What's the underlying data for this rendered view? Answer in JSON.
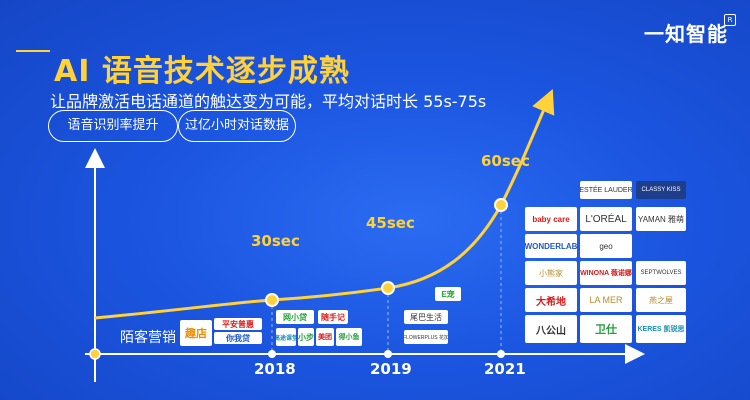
{
  "brand": {
    "name": "一知智能",
    "mark": "R"
  },
  "title": "AI 语音技术逐步成熟",
  "subtitle": "让品牌激活电话通道的触达变为可能，平均对话时长 55s-75s",
  "tags": [
    "语音识别率提升",
    "过亿小时对话数据"
  ],
  "timeline": {
    "baseline_label": "陌客营销",
    "years": [
      "2018",
      "2019",
      "2021"
    ],
    "durations": [
      "30sec",
      "45sec",
      "60sec"
    ]
  },
  "logos": {
    "baseline": [
      "趣店",
      "平安普惠",
      "你我贷"
    ],
    "y2018": [
      "网小贷",
      "随手记",
      "高途课堂",
      "小步",
      "美团",
      "得小鱼"
    ],
    "y2019": [
      "E宠",
      "尾巴生活",
      "FLOWERPLUS 花加"
    ],
    "y2021": [
      "ESTÉE LAUDER",
      "CLASSY KISS",
      "baby care",
      "L'ORÉAL",
      "YAMAN 雅萌",
      "WONDERLAB",
      "geo",
      "小熊家",
      "WINONA 薇诺娜",
      "SEPTWOLVES",
      "大希地",
      "LA MER",
      "燕之屋",
      "八公山",
      "卫仕",
      "KERES 凯锐思"
    ]
  },
  "colors": {
    "background": "#1b55e0",
    "accent": "#ffd13a",
    "axis": "#ffffff"
  }
}
